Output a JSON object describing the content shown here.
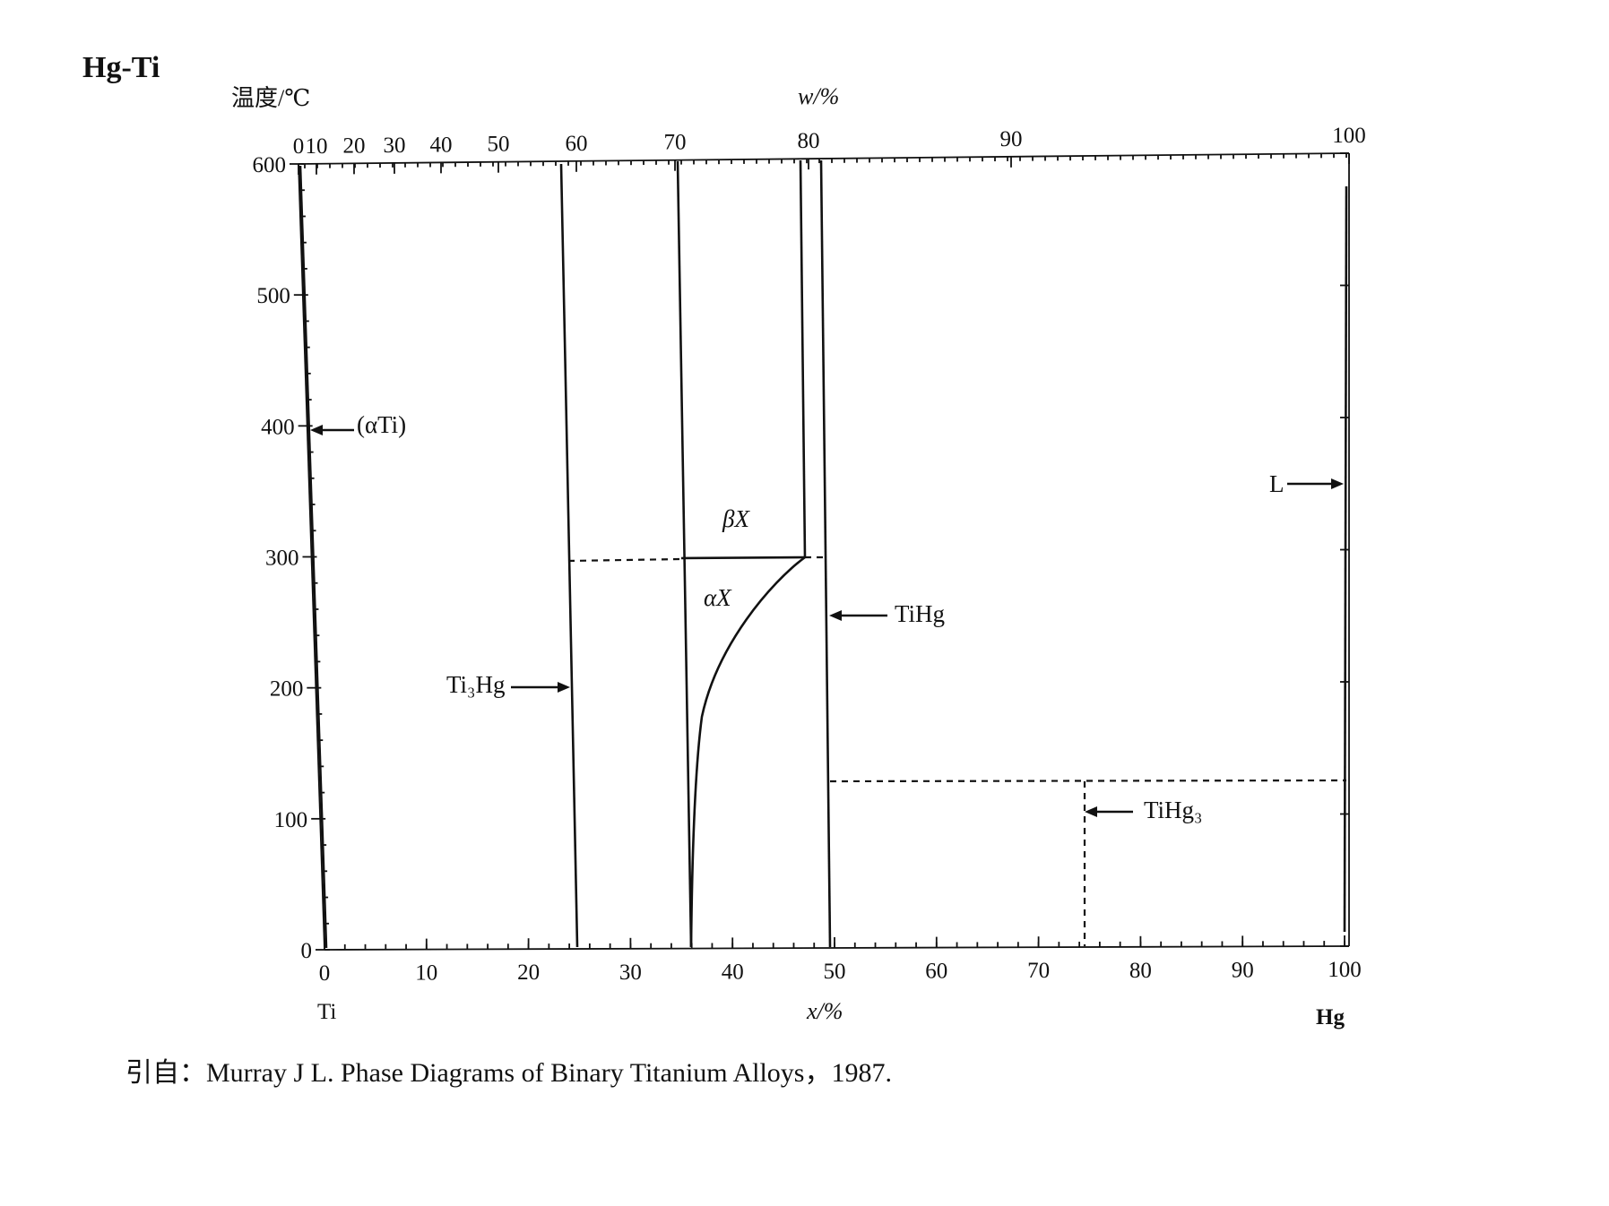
{
  "title": "Hg-Ti",
  "y_axis_label": "温度/℃",
  "top_axis_label": "w/%",
  "bottom_axis_label": "x/%",
  "left_element": "Ti",
  "right_element": "Hg",
  "citation": "引自：Murray J L. Phase Diagrams of Binary Titanium Alloys，1987.",
  "axes": {
    "x_ticks": [
      "0",
      "10",
      "20",
      "30",
      "40",
      "50",
      "60",
      "70",
      "80",
      "90",
      "100"
    ],
    "y_ticks": [
      "0",
      "100",
      "200",
      "300",
      "400",
      "500",
      "600"
    ],
    "w_ticks": [
      "0",
      "10",
      "20",
      "30",
      "40",
      "50",
      "60",
      "70",
      "80",
      "90",
      "100"
    ],
    "x_range": [
      0,
      100
    ],
    "y_range": [
      0,
      600
    ]
  },
  "phases": {
    "alpha_ti": "(αTi)",
    "ti3hg": "Ti₃Hg",
    "beta_x": "βX",
    "alpha_x": "αX",
    "tihg": "TiHg",
    "tihg3": "TiHg₃",
    "liquid": "L"
  },
  "diagram_data": {
    "phase_boundaries_x_percent": {
      "Ti3Hg": 25,
      "X_left": 36,
      "X_right": 47.5,
      "TiHg": 50,
      "TiHg3": 75,
      "Hg": 100
    },
    "transition_temperature_C": 305,
    "tihg3_decomposition_C": 133
  }
}
